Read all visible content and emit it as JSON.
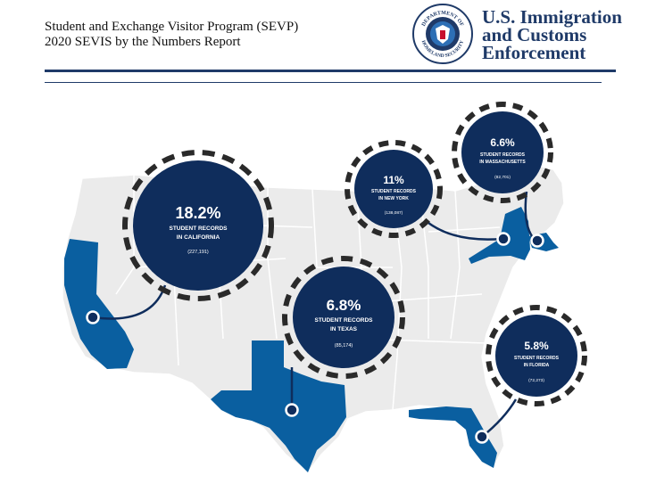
{
  "header": {
    "title_line1": "Student and Exchange Visitor Program (SEVP)",
    "title_line2": "2020 SEVIS by the Numbers Report",
    "agency_line1": "U.S. Immigration",
    "agency_line2": "and Customs",
    "agency_line3": "Enforcement",
    "seal_text_top": "DEPARTMENT OF",
    "seal_text_bottom": "HOMELAND SECURITY"
  },
  "colors": {
    "navy": "#0f2d5c",
    "highlight_blue": "#0a5fa0",
    "map_gray": "#ebebeb",
    "dash_gray": "#2a2a2a"
  },
  "callouts": [
    {
      "state": "California",
      "percent": "18.2%",
      "label_line1": "STUDENT RECORDS",
      "label_line2": "IN CALIFORNIA",
      "count": "(227,191)"
    },
    {
      "state": "Texas",
      "percent": "6.8%",
      "label_line1": "STUDENT RECORDS",
      "label_line2": "IN TEXAS",
      "count": "(85,174)"
    },
    {
      "state": "New York",
      "percent": "11%",
      "label_line1": "STUDENT RECORDS",
      "label_line2": "IN NEW YORK",
      "count": "(138,087)"
    },
    {
      "state": "Massachusetts",
      "percent": "6.6%",
      "label_line1": "STUDENT RECORDS",
      "label_line2": "IN MASSACHUSETTS",
      "count": "(82,701)"
    },
    {
      "state": "Florida",
      "percent": "5.8%",
      "label_line1": "STUDENT RECORDS",
      "label_line2": "IN FLORIDA",
      "count": "(72,273)"
    }
  ]
}
